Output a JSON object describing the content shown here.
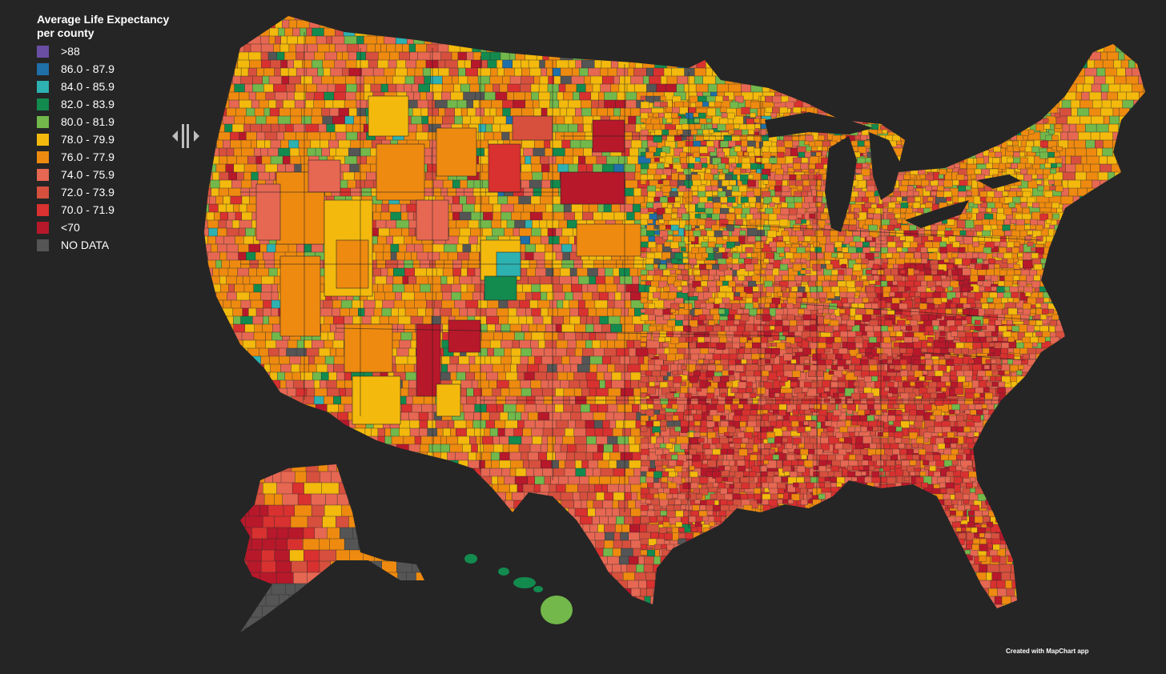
{
  "legend": {
    "title_line1": "Average Life Expectancy",
    "title_line2": "per county",
    "items": [
      {
        "label": ">88",
        "color": "#6a4ea3"
      },
      {
        "label": "86.0 - 87.9",
        "color": "#1f6fa8"
      },
      {
        "label": "84.0 - 85.9",
        "color": "#2eb1b1"
      },
      {
        "label": "82.0 - 83.9",
        "color": "#138a4e"
      },
      {
        "label": "80.0 - 81.9",
        "color": "#72b84b"
      },
      {
        "label": "78.0 - 79.9",
        "color": "#f3b90c"
      },
      {
        "label": "76.0 - 77.9",
        "color": "#ee8a0f"
      },
      {
        "label": "74.0 - 75.9",
        "color": "#e66752"
      },
      {
        "label": "72.0 - 73.9",
        "color": "#d6503d"
      },
      {
        "label": "70.0 - 71.9",
        "color": "#d8312f"
      },
      {
        "label": "<70",
        "color": "#b7182a"
      },
      {
        "label": "NO DATA",
        "color": "#555555"
      }
    ]
  },
  "credit": "Created with MapChart app",
  "colors": {
    "background": "#252525",
    "border": "#2b2b2b",
    "state_border": "#1f1f1f"
  }
}
